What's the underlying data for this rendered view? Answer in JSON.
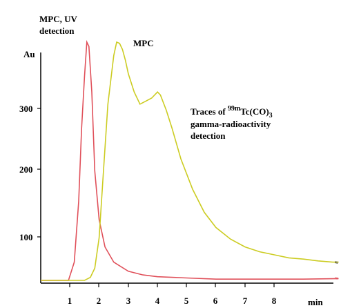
{
  "chart_data": {
    "type": "line",
    "title": "",
    "ylabel": "Au",
    "xlabel": "min",
    "xlim": [
      0,
      10.2
    ],
    "ylim": [
      0,
      400
    ],
    "x_ticks": [
      "1",
      "2",
      "3",
      "4",
      "5",
      "6",
      "7",
      "8"
    ],
    "y_ticks": [
      "100",
      "200",
      "300"
    ],
    "annotations": {
      "uv_line1": "MPC, UV",
      "uv_line2": "detection",
      "mpc": "MPC",
      "traces_prefix": "Traces of ",
      "traces_isotope": "99m",
      "traces_species": "Tc(CO)",
      "traces_sub": "3",
      "traces_line2": "gamma-radioactivity",
      "traces_line3": "detection"
    },
    "series": [
      {
        "color": "#e0505a",
        "x": [
          0,
          0.95,
          1.15,
          1.3,
          1.4,
          1.5,
          1.58,
          1.65,
          1.75,
          1.85,
          2.0,
          2.2,
          2.5,
          3.0,
          3.5,
          4.0,
          5.0,
          6.0,
          7.0,
          8.0,
          9.0,
          10.2
        ],
        "y": [
          0,
          0,
          30,
          130,
          250,
          335,
          392,
          385,
          310,
          180,
          100,
          55,
          30,
          15,
          9,
          6,
          4,
          2,
          2,
          2,
          2,
          3
        ]
      },
      {
        "color": "#cccc22",
        "x": [
          0,
          1.5,
          1.7,
          1.85,
          2.0,
          2.15,
          2.3,
          2.5,
          2.6,
          2.7,
          2.8,
          2.9,
          3.0,
          3.2,
          3.4,
          3.6,
          3.8,
          4.0,
          4.1,
          4.3,
          4.5,
          4.8,
          5.2,
          5.6,
          6.0,
          6.5,
          7.0,
          7.5,
          8.0,
          8.5,
          9.0,
          9.5,
          10.0,
          10.2
        ],
        "y": [
          0,
          0,
          5,
          20,
          70,
          180,
          290,
          370,
          392,
          390,
          380,
          362,
          340,
          310,
          290,
          295,
          300,
          310,
          305,
          280,
          250,
          200,
          150,
          112,
          87,
          68,
          55,
          47,
          42,
          37,
          35,
          32,
          30,
          30
        ]
      }
    ]
  }
}
